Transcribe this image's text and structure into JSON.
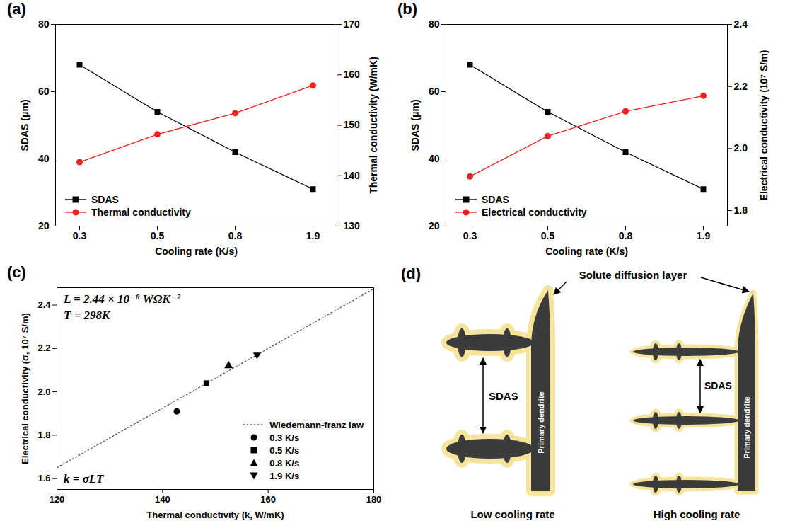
{
  "chart_data": [
    {
      "panel_label": "(a)",
      "type": "line",
      "x_label": "Cooling rate (K/s)",
      "y_label": "SDAS (μm)",
      "y2_label": "Thermal conductivity (W/mK)",
      "categories": [
        "0.3",
        "0.5",
        "0.8",
        "1.9"
      ],
      "ylim": [
        20,
        80
      ],
      "yticks": [
        20,
        40,
        60,
        80
      ],
      "y2lim": [
        130,
        170
      ],
      "y2ticks": [
        130,
        140,
        150,
        160,
        170
      ],
      "legend": "lower left",
      "series": [
        {
          "name": "SDAS",
          "color": "#000000",
          "marker": "square",
          "values": [
            68,
            54,
            42,
            31
          ]
        },
        {
          "name": "Thermal conductivity",
          "color": "#e8241f",
          "marker": "circle",
          "axis": "y2",
          "values": [
            142.7,
            148.2,
            152.4,
            157.9
          ]
        }
      ]
    },
    {
      "panel_label": "(b)",
      "type": "line",
      "x_label": "Cooling rate (K/s)",
      "y_label": "SDAS (μm)",
      "y2_label": "Electrical conductivity (10⁷ S/m)",
      "categories": [
        "0.3",
        "0.5",
        "0.8",
        "1.9"
      ],
      "ylim": [
        20,
        80
      ],
      "yticks": [
        20,
        40,
        60,
        80
      ],
      "y2lim": [
        1.75,
        2.4
      ],
      "y2ticks": [
        1.8,
        {
          "value": 2,
          "label": "2.0"
        },
        2.2,
        2.4
      ],
      "legend": "lower left",
      "series": [
        {
          "name": "SDAS",
          "color": "#000000",
          "marker": "square",
          "values": [
            68,
            54,
            42,
            31
          ]
        },
        {
          "name": "Electrical conductivity",
          "color": "#e8241f",
          "marker": "circle",
          "axis": "y2",
          "values": [
            1.91,
            2.04,
            2.12,
            2.17
          ]
        }
      ]
    },
    {
      "panel_label": "(c)",
      "type": "scatter",
      "x_label": "Thermal conductivity (k, W/mK)",
      "y_label": "Electrical conductivity (σ, 10⁷ S/m)",
      "xlim": [
        120,
        180
      ],
      "xticks": [
        120,
        140,
        160,
        180
      ],
      "ylim": [
        1.55,
        2.48
      ],
      "yticks": [
        1.6,
        1.8,
        {
          "value": 2,
          "label": "2.0"
        },
        2.2,
        2.4
      ],
      "annotations": [
        "L = 2.44 × 10⁻⁸ WΩK⁻²",
        "T = 298K",
        "k = σLT"
      ],
      "legend": "lower right",
      "series": [
        {
          "name": "Wiedemann-franz law",
          "type": "line",
          "line_style": "dotted",
          "color": "#555555",
          "x": [
            120,
            180
          ],
          "values": [
            1.65,
            2.475
          ]
        },
        {
          "name": "0.3 K/s",
          "marker": "circle",
          "color": "#000000",
          "x": [
            142.7
          ],
          "values": [
            1.91
          ]
        },
        {
          "name": "0.5 K/s",
          "marker": "square",
          "color": "#000000",
          "x": [
            148.3
          ],
          "values": [
            2.04
          ]
        },
        {
          "name": "0.8 K/s",
          "marker": "triangle",
          "color": "#000000",
          "x": [
            152.5
          ],
          "values": [
            2.12
          ]
        },
        {
          "name": "1.9 K/s",
          "marker": "triangle-down",
          "color": "#000000",
          "x": [
            157.9
          ],
          "values": [
            2.17
          ]
        }
      ]
    }
  ],
  "diagram": {
    "panel_label": "(d)",
    "top_label": "Solute diffusion layer",
    "left": {
      "arrow_label": "SDAS",
      "stem_label": "Primary dendrite",
      "caption": "Low cooling rate"
    },
    "right": {
      "arrow_label": "SDAS",
      "stem_label": "Primary dendrite",
      "caption": "High cooling rate"
    }
  }
}
